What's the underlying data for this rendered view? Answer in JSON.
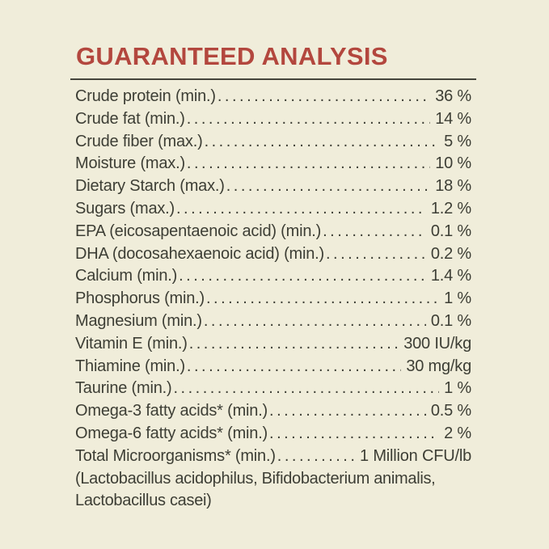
{
  "title": "GUARANTEED ANALYSIS",
  "colors": {
    "background": "#f0edda",
    "title": "#b3473e",
    "text": "#3d3e35",
    "rule": "#45453c"
  },
  "rows": [
    {
      "label": "Crude protein (min.)",
      "value": "36 %"
    },
    {
      "label": "Crude fat (min.)",
      "value": "14 %"
    },
    {
      "label": "Crude fiber (max.)",
      "value": "5 %"
    },
    {
      "label": "Moisture (max.)",
      "value": "10 %"
    },
    {
      "label": "Dietary Starch (max.)",
      "value": "18 %"
    },
    {
      "label": "Sugars (max.)",
      "value": "1.2 %"
    },
    {
      "label": "EPA (eicosapentaenoic acid) (min.)",
      "value": "0.1 %"
    },
    {
      "label": "DHA (docosahexaenoic acid) (min.)",
      "value": "0.2 %"
    },
    {
      "label": "Calcium (min.)",
      "value": "1.4 %"
    },
    {
      "label": "Phosphorus (min.)",
      "value": "1 %"
    },
    {
      "label": "Magnesium (min.)",
      "value": "0.1 %"
    },
    {
      "label": "Vitamin E (min.)",
      "value": "300 IU/kg"
    },
    {
      "label": "Thiamine (min.)",
      "value": "30 mg/kg"
    },
    {
      "label": "Taurine (min.)",
      "value": "1 %"
    },
    {
      "label": "Omega-3 fatty acids* (min.)",
      "value": "0.5 %"
    },
    {
      "label": "Omega-6 fatty acids* (min.)",
      "value": "2 %"
    },
    {
      "label": "Total Microorganisms* (min.)",
      "value": "1 Million CFU/lb"
    }
  ],
  "note_lines": [
    "(Lactobacillus acidophilus, Bifidobacterium animalis,",
    "Lactobacillus casei)"
  ]
}
